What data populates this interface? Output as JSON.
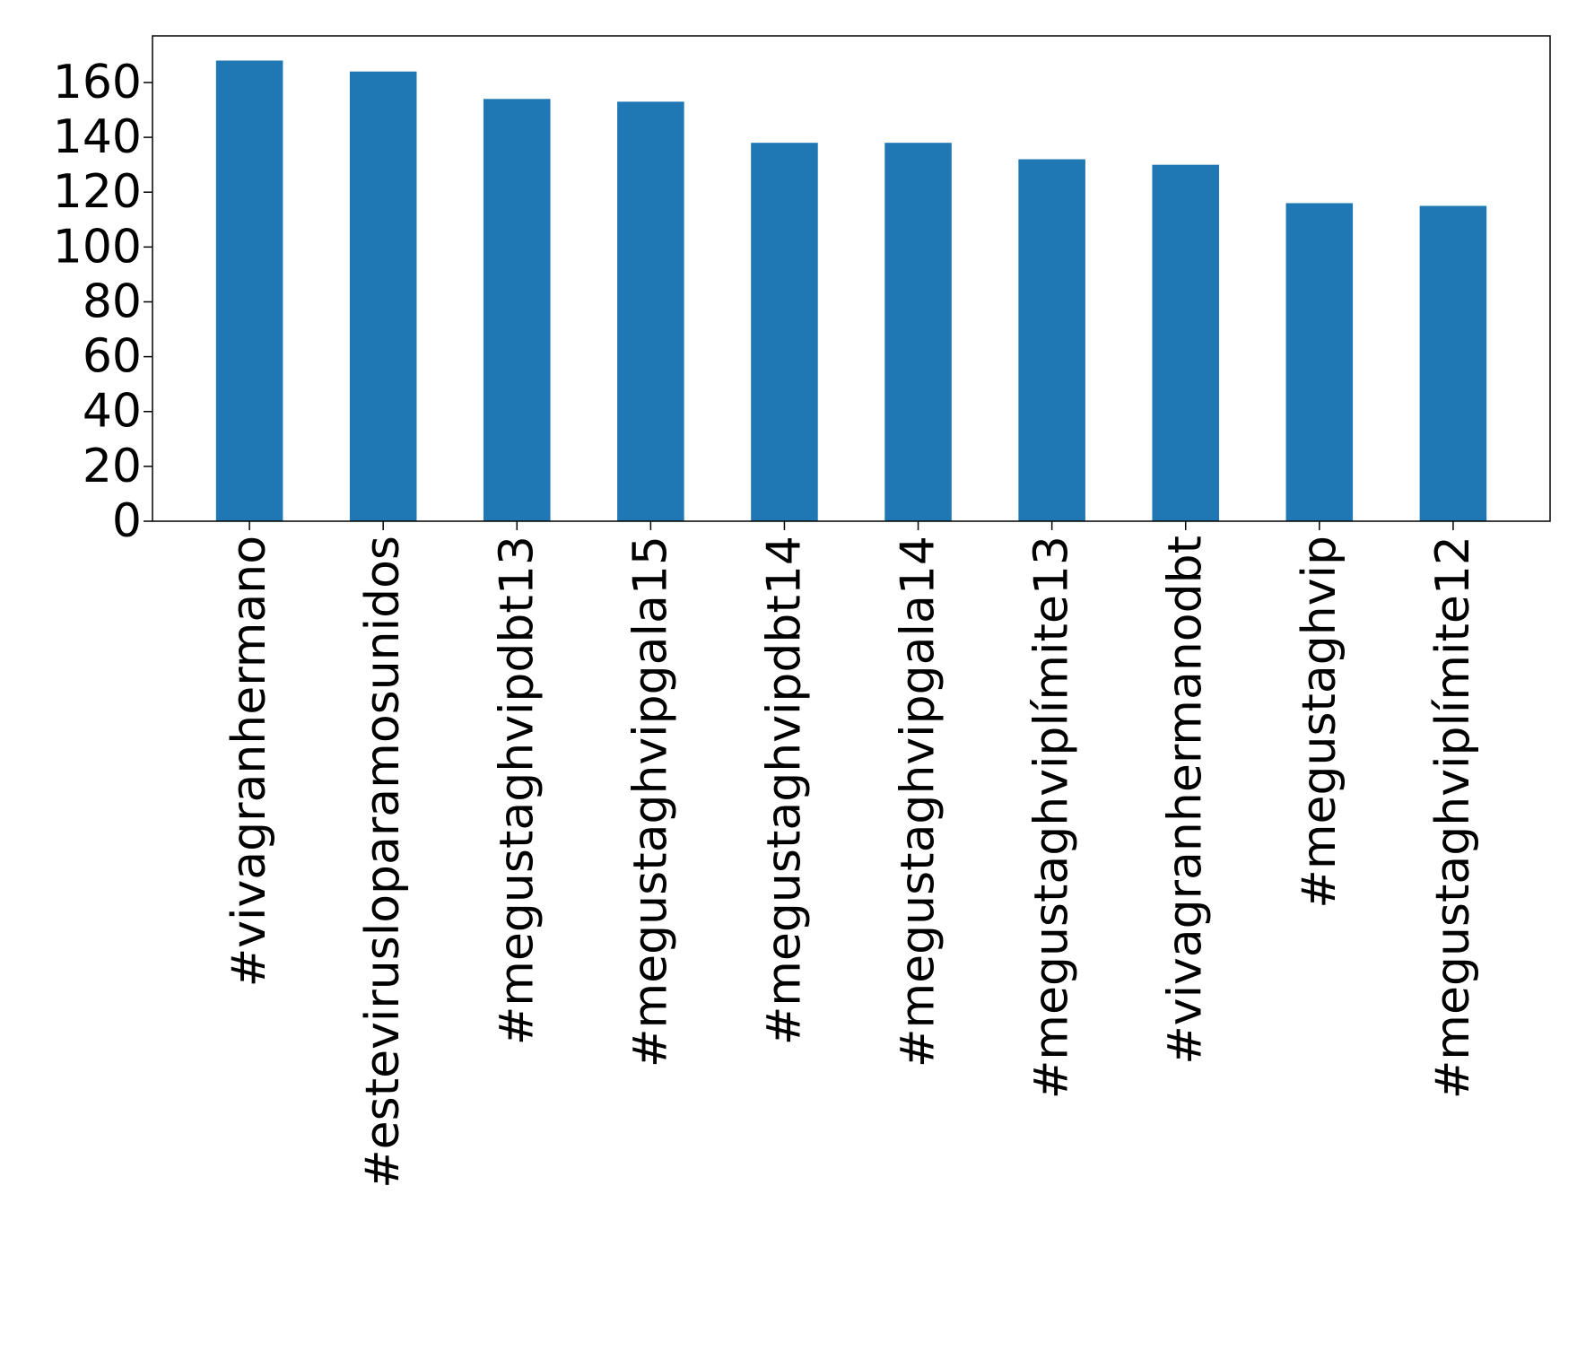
{
  "chart_data": {
    "type": "bar",
    "title": "",
    "xlabel": "",
    "ylabel": "",
    "categories": [
      "#vivagranhermano",
      "#estevirusloparamosunidos",
      "#megustaghvipdbt13",
      "#megustaghvipgala15",
      "#megustaghvipdbt14",
      "#megustaghvipgala14",
      "#megustaghviplímite13",
      "#vivagranhermanodbt",
      "#megustaghvip",
      "#megustaghviplímite12"
    ],
    "values": [
      168,
      164,
      154,
      153,
      138,
      138,
      132,
      130,
      116,
      115
    ],
    "ylim": [
      0,
      177
    ],
    "yticks": [
      0,
      20,
      40,
      60,
      80,
      100,
      120,
      140,
      160
    ],
    "bar_color": "#1f77b4",
    "grid": false,
    "legend": "none"
  }
}
